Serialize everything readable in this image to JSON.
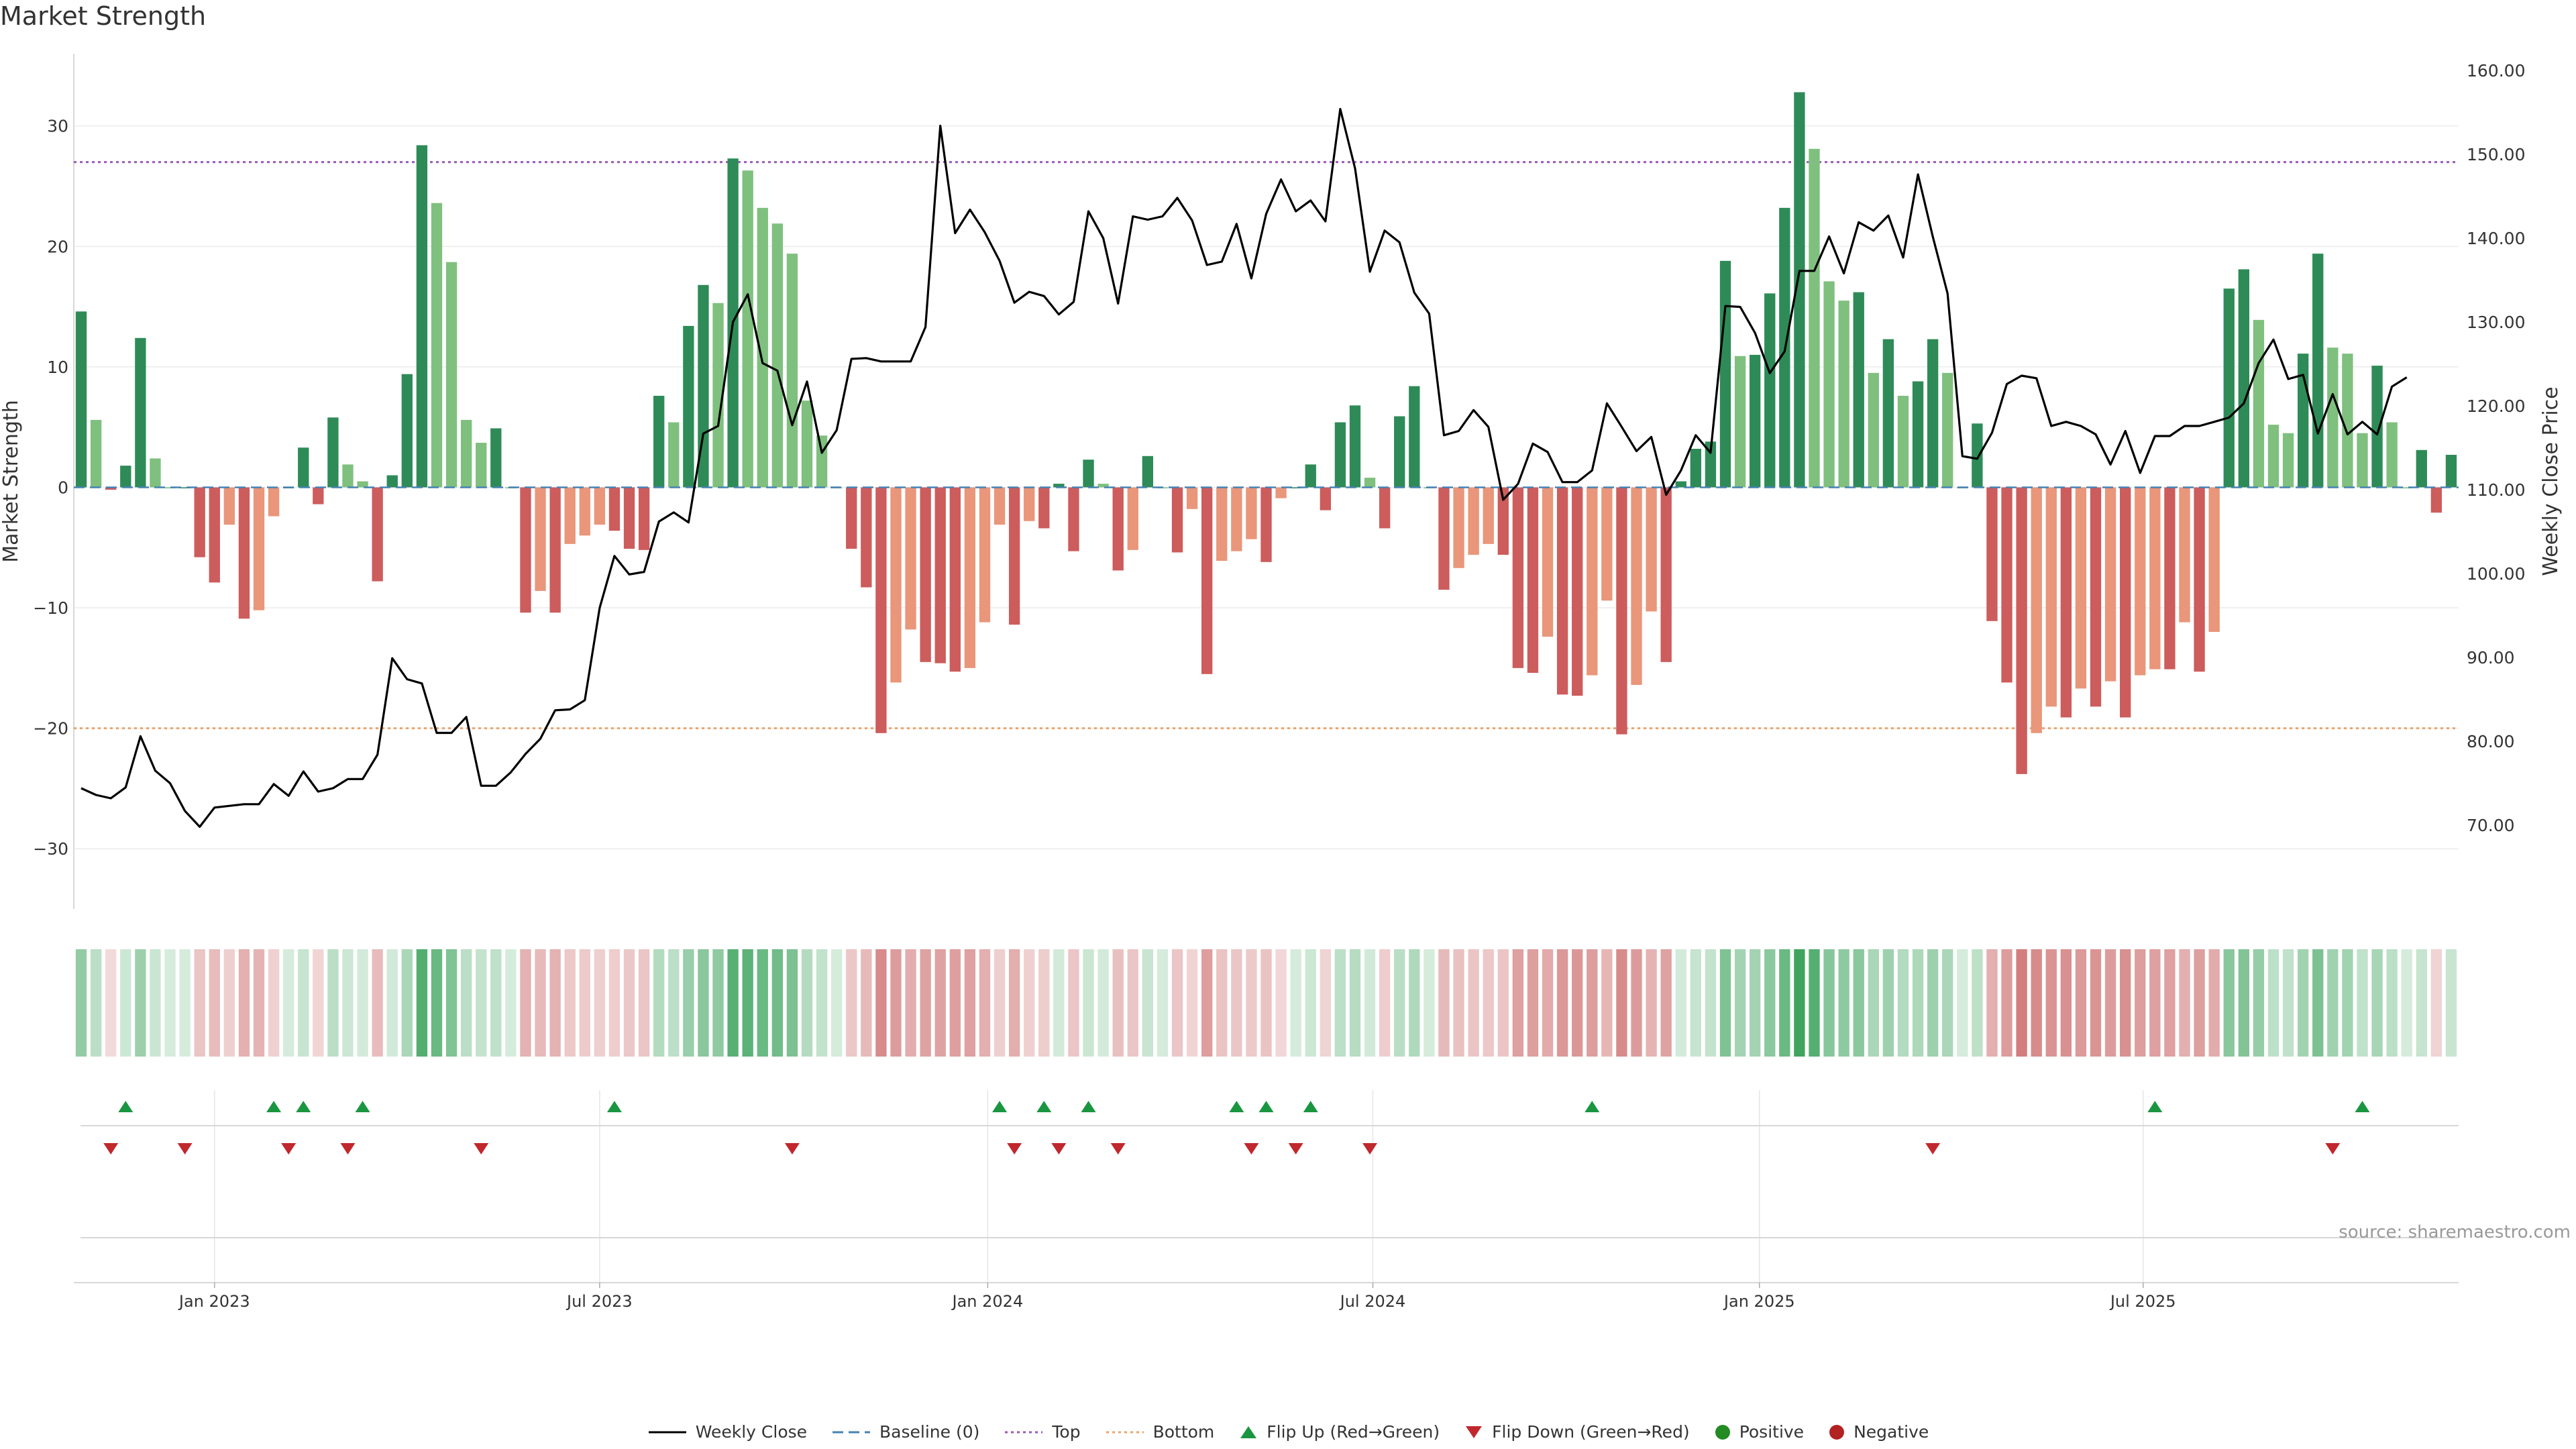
{
  "chart_data": {
    "type": "bar",
    "title": "Market Strength",
    "source": "source: sharemaestro.com",
    "ylabel_left": "Market Strength",
    "ylabel_right": "Weekly Close Price",
    "ylim_left": [
      -35,
      36
    ],
    "ylim_right": [
      60,
      162
    ],
    "yticks_left": [
      30,
      20,
      10,
      0,
      -10,
      -20,
      -30
    ],
    "yticks_left_labels": [
      "30",
      "20",
      "10",
      "0",
      "−10",
      "−20",
      "−30"
    ],
    "yticks_right": [
      160,
      150,
      140,
      130,
      120,
      110,
      100,
      90,
      80,
      70
    ],
    "yticks_right_labels": [
      "160.00",
      "150.00",
      "140.00",
      "130.00",
      "120.00",
      "110.00",
      "100.00",
      "90.00",
      "80.00",
      "70.00"
    ],
    "top_level": 27,
    "bottom_level": -20,
    "x_start": "2022-10-28",
    "x_end": "2025-10-10",
    "weekly_dates_start": "2022-10-28",
    "xticks": [
      {
        "label": "Jan 2023",
        "week": 9.5
      },
      {
        "label": "Jul 2023",
        "week": 35.5
      },
      {
        "label": "Jan 2024",
        "week": 61.7
      },
      {
        "label": "Jul 2024",
        "week": 87.7
      },
      {
        "label": "Jan 2025",
        "week": 113.8
      },
      {
        "label": "Jul 2025",
        "week": 139.7
      }
    ],
    "strength": [
      14.6,
      5.6,
      -0.2,
      1.8,
      12.4,
      2.4,
      0,
      0,
      -5.8,
      -7.9,
      -3.1,
      -10.9,
      -10.2,
      -2.4,
      0,
      3.3,
      -1.4,
      5.8,
      1.9,
      0.5,
      -7.8,
      1,
      9.4,
      28.4,
      23.6,
      18.7,
      5.6,
      3.7,
      4.9,
      0,
      -10.4,
      -8.6,
      -10.4,
      -4.7,
      -4,
      -3.1,
      -3.6,
      -5.1,
      -5.2,
      7.6,
      5.4,
      13.4,
      16.8,
      15.3,
      27.3,
      26.3,
      23.2,
      21.9,
      19.4,
      7.2,
      4.3,
      0,
      -5.1,
      -8.3,
      -20.4,
      -16.2,
      -11.8,
      -14.5,
      -14.6,
      -15.3,
      -15,
      -11.2,
      -3.1,
      -11.4,
      -2.8,
      -3.4,
      0.3,
      -5.3,
      2.3,
      0.3,
      -6.9,
      -5.2,
      2.6,
      0,
      -5.4,
      -1.8,
      -15.5,
      -6.1,
      -5.3,
      -4.3,
      -6.2,
      -0.9,
      0,
      1.9,
      -1.9,
      5.4,
      6.8,
      0.8,
      -3.4,
      5.9,
      8.4,
      0,
      -8.5,
      -6.7,
      -5.6,
      -4.7,
      -5.6,
      -15,
      -15.4,
      -12.4,
      -17.2,
      -17.3,
      -15.6,
      -9.4,
      -20.5,
      -16.4,
      -10.3,
      -14.5,
      0.5,
      3.2,
      3.8,
      18.8,
      10.9,
      11,
      16.1,
      23.2,
      32.8,
      28.1,
      17.1,
      15.5,
      16.2,
      9.5,
      12.3,
      7.6,
      8.8,
      12.3,
      9.5,
      0,
      5.3,
      -11.1,
      -16.2,
      -23.8,
      -20.4,
      -18.2,
      -19.1,
      -16.7,
      -18.2,
      -16.1,
      -19.1,
      -15.6,
      -15.1,
      -15.1,
      -11.2,
      -15.3,
      -12,
      16.5,
      18.1,
      13.9,
      5.2,
      4.5,
      11.1,
      19.4,
      11.6,
      11.1,
      4.5,
      10.1,
      5.4,
      0,
      3.1,
      -2.1,
      2.7
    ],
    "close": [
      74.4,
      73.6,
      73.2,
      74.5,
      80.6,
      76.5,
      75,
      71.7,
      69.8,
      72.1,
      72.3,
      72.5,
      72.5,
      74.9,
      73.5,
      76.4,
      74,
      74.4,
      75.5,
      75.5,
      78.4,
      89.9,
      87.4,
      86.9,
      81,
      81,
      82.9,
      74.7,
      74.7,
      76.3,
      78.5,
      80.3,
      83.7,
      83.8,
      84.9,
      95.9,
      102.1,
      99.9,
      100.2,
      106.2,
      107.3,
      106.1,
      116.7,
      117.6,
      130,
      133.3,
      125.1,
      124.2,
      117.7,
      122.9,
      114.4,
      117.1,
      125.6,
      125.7,
      125.3,
      125.3,
      125.3,
      129.4,
      153.4,
      140.6,
      143.4,
      140.7,
      137.3,
      132.3,
      133.6,
      133.1,
      130.9,
      132.4,
      143.2,
      140,
      132.2,
      142.6,
      142.2,
      142.6,
      144.8,
      142.1,
      136.8,
      137.2,
      141.7,
      135.2,
      142.9,
      147,
      143.2,
      144.5,
      142,
      155.4,
      148.3,
      136,
      140.9,
      139.5,
      133.5,
      131,
      116.5,
      117,
      119.5,
      117.5,
      108.8,
      110.7,
      115.5,
      114.5,
      110.9,
      110.9,
      112.3,
      120.3,
      117.5,
      114.6,
      116.3,
      109.4,
      112.3,
      116.5,
      114.4,
      131.9,
      131.8,
      128.7,
      123.9,
      126.5,
      136.1,
      136.1,
      140.2,
      135.8,
      141.9,
      140.9,
      142.7,
      137.7,
      147.6,
      140.2,
      133.4,
      114,
      113.7,
      116.8,
      122.6,
      123.6,
      123.3,
      117.6,
      118.1,
      117.6,
      116.6,
      113,
      117,
      112,
      116.4,
      116.4,
      117.6,
      117.6,
      118.1,
      118.6,
      120.3,
      125.1,
      127.9,
      123.2,
      123.7,
      116.7,
      121.4,
      116.6,
      118.1,
      116.6,
      122.3,
      123.4
    ],
    "flips_up_weeks": [
      3,
      13,
      15,
      19,
      36,
      62,
      65,
      68,
      78,
      80,
      83,
      102,
      140,
      154
    ],
    "flips_down_weeks": [
      2,
      7,
      14,
      18,
      27,
      48,
      63,
      66,
      70,
      79,
      82,
      87,
      125,
      152
    ],
    "legend": [
      "Weekly Close",
      "Baseline (0)",
      "Top",
      "Bottom",
      "Flip Up (Red→Green)",
      "Flip Down (Green→Red)",
      "Positive",
      "Negative"
    ],
    "colors": {
      "green_strong": "#2e8b57",
      "green_light": "#7fc07f",
      "red_strong": "#cd5c5c",
      "red_light": "#e9967a",
      "close_line": "#000000",
      "baseline": "#4682b4",
      "top_line": "#9b59b6",
      "bottom_line": "#e9a56a",
      "flip_up": "#1a9641",
      "flip_down": "#c0282d",
      "positive_dot": "#228b22",
      "negative_dot": "#b22222"
    }
  }
}
